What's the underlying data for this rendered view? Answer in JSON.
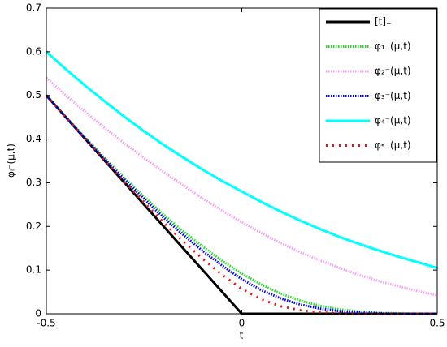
{
  "chart_data": {
    "type": "line",
    "xlabel": "t",
    "ylabel": "φᵢ⁻(μ,t)",
    "x": [
      -0.5,
      -0.45,
      -0.4,
      -0.35,
      -0.3,
      -0.25,
      -0.2,
      -0.15,
      -0.1,
      -0.05,
      0,
      0.05,
      0.1,
      0.15,
      0.2,
      0.25,
      0.3,
      0.35,
      0.4,
      0.45,
      0.5
    ],
    "series": [
      {
        "name": "[t]₋",
        "color": "#000000",
        "linestyle": "solid",
        "values": [
          0.5,
          0.45,
          0.4,
          0.35,
          0.3,
          0.25,
          0.2,
          0.15,
          0.1,
          0.05,
          0,
          0,
          0,
          0,
          0,
          0,
          0,
          0,
          0,
          0,
          0
        ]
      },
      {
        "name": "φ₁⁻(μ,t)",
        "color": "#22dd22",
        "linestyle": "dotted",
        "values": [
          0.5,
          0.451,
          0.403,
          0.356,
          0.311,
          0.268,
          0.227,
          0.189,
          0.154,
          0.121,
          0.092,
          0.067,
          0.046,
          0.03,
          0.018,
          0.01,
          0.005,
          0.002,
          0.001,
          0,
          0
        ]
      },
      {
        "name": "φ₂⁻(μ,t)",
        "color": "#f5a0f5",
        "linestyle": "dotted",
        "values": [
          0.54,
          0.5,
          0.462,
          0.425,
          0.39,
          0.357,
          0.325,
          0.294,
          0.264,
          0.236,
          0.21,
          0.185,
          0.162,
          0.141,
          0.122,
          0.105,
          0.089,
          0.075,
          0.063,
          0.052,
          0.042
        ]
      },
      {
        "name": "φ₃⁻(μ,t)",
        "color": "#0000ee",
        "linestyle": "dotted",
        "values": [
          0.5,
          0.45,
          0.401,
          0.353,
          0.307,
          0.263,
          0.22,
          0.181,
          0.144,
          0.11,
          0.079,
          0.054,
          0.035,
          0.021,
          0.012,
          0.006,
          0.003,
          0.001,
          0,
          0,
          0
        ]
      },
      {
        "name": "φ₄⁻(μ,t)",
        "color": "#00ffff",
        "linestyle": "solid",
        "values": [
          0.6,
          0.56,
          0.522,
          0.486,
          0.451,
          0.418,
          0.387,
          0.358,
          0.33,
          0.304,
          0.28,
          0.256,
          0.234,
          0.213,
          0.194,
          0.176,
          0.16,
          0.145,
          0.131,
          0.118,
          0.105
        ]
      },
      {
        "name": "φ₅⁻(μ,t)",
        "color": "#ee1111",
        "linestyle": "dots",
        "values": [
          0.5,
          0.45,
          0.4,
          0.351,
          0.302,
          0.255,
          0.209,
          0.166,
          0.126,
          0.089,
          0.057,
          0.033,
          0.017,
          0.008,
          0.003,
          0.001,
          0,
          0,
          0,
          0,
          0
        ]
      }
    ],
    "xlim": [
      -0.5,
      0.5
    ],
    "xticks": [
      -0.5,
      0,
      0.5
    ],
    "ylim": [
      0,
      0.7
    ],
    "yticks": [
      0,
      0.1,
      0.2,
      0.3,
      0.4,
      0.5,
      0.6,
      0.7
    ],
    "grid": false,
    "legend": "upper right"
  }
}
